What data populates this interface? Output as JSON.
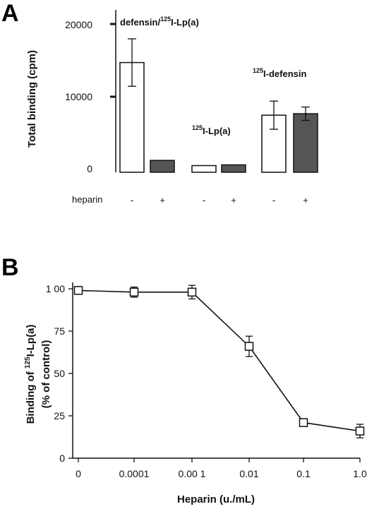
{
  "chart_data": [
    {
      "panel": "A",
      "type": "bar",
      "ylabel": "Total binding (cpm)",
      "ylim": [
        0,
        20000
      ],
      "yticks": [
        "0",
        "10000",
        "20000"
      ],
      "row_label": "heparin",
      "categories": [
        "-",
        "+",
        "-",
        "+",
        "-",
        "+"
      ],
      "groups": [
        "defensin/125I-Lp(a)",
        "125I-Lp(a)",
        "125I-defensin"
      ],
      "group_labels": [
        {
          "base": "defensin/",
          "sup": "125",
          "rest": "I-Lp(a)"
        },
        {
          "base": "",
          "sup": "125",
          "rest": "I-Lp(a)"
        },
        {
          "base": "",
          "sup": "125",
          "rest": "I-defensin"
        }
      ],
      "values": [
        14800,
        1600,
        900,
        1000,
        7700,
        7900
      ],
      "errors": [
        3200,
        0,
        0,
        0,
        1900,
        900
      ],
      "fills": [
        "#ffffff",
        "#555555",
        "#ffffff",
        "#555555",
        "#ffffff",
        "#555555"
      ]
    },
    {
      "panel": "B",
      "type": "line",
      "xlabel": "Heparin (u./mL)",
      "ylabel_parts": {
        "line1_base": "Binding of ",
        "line1_sup": "125",
        "line1_rest": "I-Lp(a)",
        "line2": "(% of control)"
      },
      "x": [
        "0",
        "0.0001",
        "0.001",
        "0.01",
        "0.1",
        "1.0"
      ],
      "x_tick_labels": [
        "0",
        "0.0001",
        "0.00 1",
        "0.01",
        "0.1",
        "1.0"
      ],
      "y": [
        99,
        98,
        98,
        66,
        21,
        16
      ],
      "errors": [
        0,
        3,
        4,
        6,
        0,
        4
      ],
      "ylim": [
        0,
        100
      ],
      "yticks": [
        "0",
        "25",
        "50",
        "75",
        "1 00"
      ]
    }
  ],
  "panel_letters": [
    "A",
    "B"
  ]
}
